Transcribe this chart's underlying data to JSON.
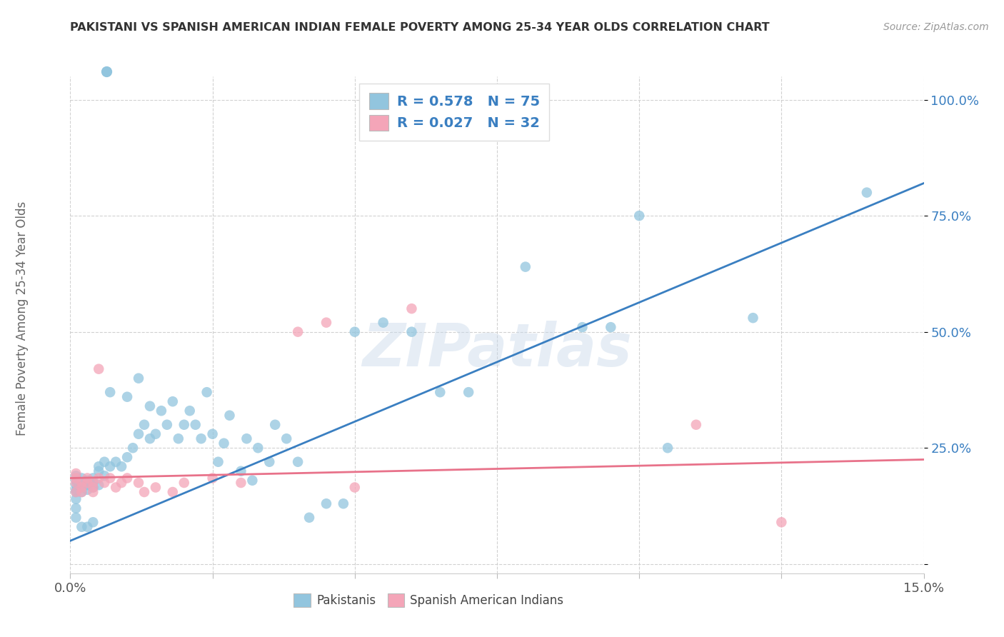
{
  "title": "PAKISTANI VS SPANISH AMERICAN INDIAN FEMALE POVERTY AMONG 25-34 YEAR OLDS CORRELATION CHART",
  "source": "Source: ZipAtlas.com",
  "ylabel": "Female Poverty Among 25-34 Year Olds",
  "xlim": [
    0.0,
    0.15
  ],
  "ylim": [
    -0.02,
    1.05
  ],
  "xticks": [
    0.0,
    0.025,
    0.05,
    0.075,
    0.1,
    0.125,
    0.15
  ],
  "xticklabels": [
    "0.0%",
    "",
    "",
    "",
    "",
    "",
    "15.0%"
  ],
  "yticks": [
    0.0,
    0.25,
    0.5,
    0.75,
    1.0
  ],
  "yticklabels": [
    "",
    "25.0%",
    "50.0%",
    "75.0%",
    "100.0%"
  ],
  "blue_color": "#92c5de",
  "pink_color": "#f4a5b8",
  "blue_line_color": "#3a7fc1",
  "pink_line_color": "#e8728a",
  "legend_blue_label": "R = 0.578   N = 75",
  "legend_pink_label": "R = 0.027   N = 32",
  "legend_text_color": "#3a7fc1",
  "watermark": "ZIPatlas",
  "blue_line_x0": 0.0,
  "blue_line_y0": 0.05,
  "blue_line_x1": 0.15,
  "blue_line_y1": 0.82,
  "pink_line_x0": 0.0,
  "pink_line_y0": 0.185,
  "pink_line_x1": 0.15,
  "pink_line_y1": 0.225,
  "blue_scatter_x": [
    0.001,
    0.001,
    0.001,
    0.001,
    0.001,
    0.001,
    0.001,
    0.001,
    0.002,
    0.002,
    0.002,
    0.002,
    0.002,
    0.003,
    0.003,
    0.003,
    0.003,
    0.004,
    0.004,
    0.004,
    0.004,
    0.005,
    0.005,
    0.005,
    0.006,
    0.006,
    0.007,
    0.007,
    0.008,
    0.009,
    0.01,
    0.01,
    0.011,
    0.012,
    0.012,
    0.013,
    0.014,
    0.014,
    0.015,
    0.016,
    0.017,
    0.018,
    0.019,
    0.02,
    0.021,
    0.022,
    0.023,
    0.024,
    0.025,
    0.026,
    0.027,
    0.028,
    0.03,
    0.031,
    0.032,
    0.033,
    0.035,
    0.036,
    0.038,
    0.04,
    0.042,
    0.045,
    0.048,
    0.05,
    0.055,
    0.06,
    0.065,
    0.07,
    0.08,
    0.09,
    0.095,
    0.1,
    0.105,
    0.12,
    0.14
  ],
  "blue_scatter_y": [
    0.155,
    0.16,
    0.17,
    0.18,
    0.19,
    0.14,
    0.12,
    0.1,
    0.155,
    0.165,
    0.175,
    0.185,
    0.08,
    0.16,
    0.17,
    0.18,
    0.08,
    0.165,
    0.175,
    0.185,
    0.09,
    0.17,
    0.2,
    0.21,
    0.19,
    0.22,
    0.21,
    0.37,
    0.22,
    0.21,
    0.23,
    0.36,
    0.25,
    0.28,
    0.4,
    0.3,
    0.27,
    0.34,
    0.28,
    0.33,
    0.3,
    0.35,
    0.27,
    0.3,
    0.33,
    0.3,
    0.27,
    0.37,
    0.28,
    0.22,
    0.26,
    0.32,
    0.2,
    0.27,
    0.18,
    0.25,
    0.22,
    0.3,
    0.27,
    0.22,
    0.1,
    0.13,
    0.13,
    0.5,
    0.52,
    0.5,
    0.37,
    0.37,
    0.64,
    0.51,
    0.51,
    0.75,
    0.25,
    0.53,
    0.8
  ],
  "pink_scatter_x": [
    0.001,
    0.001,
    0.001,
    0.001,
    0.002,
    0.002,
    0.002,
    0.003,
    0.003,
    0.004,
    0.004,
    0.004,
    0.005,
    0.005,
    0.006,
    0.007,
    0.008,
    0.009,
    0.01,
    0.012,
    0.013,
    0.015,
    0.018,
    0.02,
    0.025,
    0.03,
    0.04,
    0.045,
    0.05,
    0.06,
    0.11,
    0.125
  ],
  "pink_scatter_y": [
    0.175,
    0.185,
    0.195,
    0.155,
    0.175,
    0.165,
    0.155,
    0.175,
    0.185,
    0.175,
    0.165,
    0.155,
    0.42,
    0.185,
    0.175,
    0.185,
    0.165,
    0.175,
    0.185,
    0.175,
    0.155,
    0.165,
    0.155,
    0.175,
    0.185,
    0.175,
    0.5,
    0.52,
    0.165,
    0.55,
    0.3,
    0.09
  ]
}
